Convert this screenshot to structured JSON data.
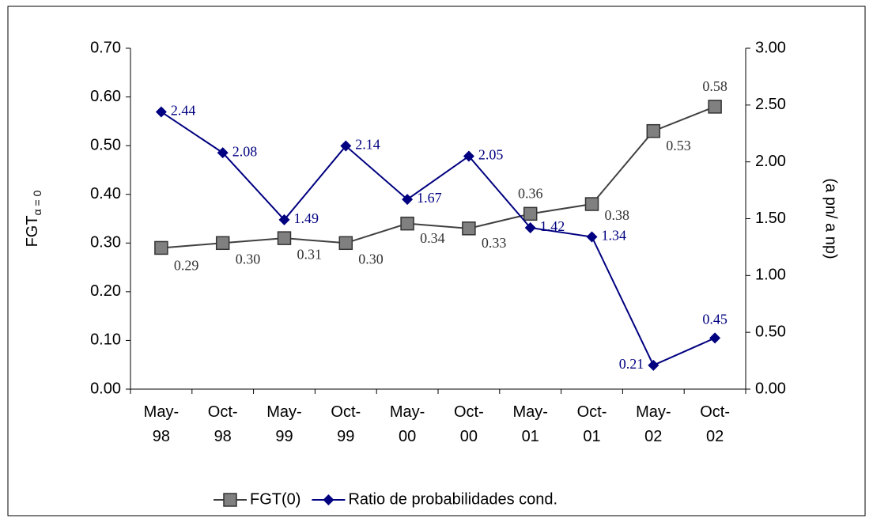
{
  "chart_data": {
    "type": "line",
    "y_label": {
      "text": "FGT",
      "subscript": "α = 0"
    },
    "y2_label": "(a pn/ a np)",
    "categories": [
      "May-98",
      "Oct-98",
      "May-99",
      "Oct-99",
      "May-00",
      "Oct-00",
      "May-01",
      "Oct-01",
      "May-02",
      "Oct-02"
    ],
    "series": [
      {
        "name": "FGT(0)",
        "color": "#808080",
        "line_color": "#404040",
        "marker": "square",
        "values": [
          0.29,
          0.3,
          0.31,
          0.3,
          0.34,
          0.33,
          0.36,
          0.38,
          0.53,
          0.58
        ],
        "value_labels": [
          "0.29",
          "0.30",
          "0.31",
          "0.30",
          "0.34",
          "0.33",
          "0.36",
          "0.38",
          "0.53",
          "0.58"
        ]
      },
      {
        "name": "Ratio de probabilidades cond.",
        "color": "#000080",
        "line_color": "#000080",
        "marker": "diamond",
        "axis": "y2",
        "values": [
          2.44,
          2.08,
          1.49,
          2.14,
          1.67,
          2.05,
          1.42,
          1.34,
          0.21,
          0.45
        ],
        "value_labels": [
          "2.44",
          "2.08",
          "1.49",
          "2.14",
          "1.67",
          "2.05",
          "1.42",
          "1.34",
          "0.21",
          "0.45"
        ]
      }
    ],
    "ylim": [
      0,
      0.7
    ],
    "yticks": [
      {
        "value": 0,
        "label": "0.00"
      },
      {
        "value": 0.1,
        "label": "0.10"
      },
      {
        "value": 0.2,
        "label": "0.20"
      },
      {
        "value": 0.3,
        "label": "0.30"
      },
      {
        "value": 0.4,
        "label": "0.40"
      },
      {
        "value": 0.5,
        "label": "0.50"
      },
      {
        "value": 0.6,
        "label": "0.60"
      },
      {
        "value": 0.7,
        "label": "0.70"
      }
    ],
    "y2lim": [
      0,
      3
    ],
    "y2ticks": [
      {
        "value": 0,
        "label": "0.00"
      },
      {
        "value": 0.5,
        "label": "0.50"
      },
      {
        "value": 1,
        "label": "1.00"
      },
      {
        "value": 1.5,
        "label": "1.50"
      },
      {
        "value": 2,
        "label": "2.00"
      },
      {
        "value": 2.5,
        "label": "2.50"
      },
      {
        "value": 3,
        "label": "3.00"
      }
    ],
    "grid": false,
    "legend": "bottom"
  }
}
